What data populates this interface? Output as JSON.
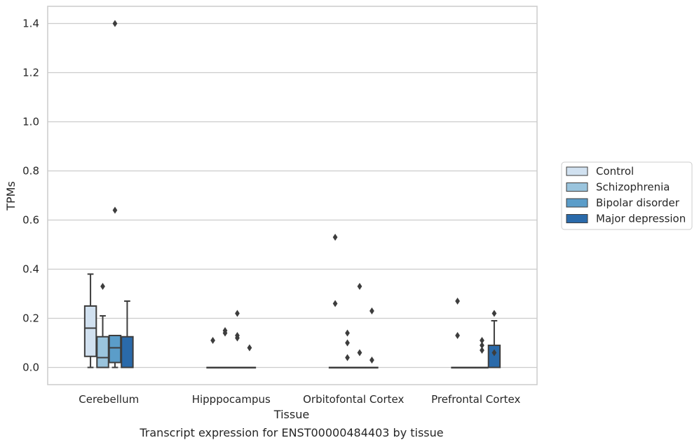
{
  "chart_data": {
    "type": "box",
    "xlabel": "Tissue",
    "ylabel": "TPMs",
    "caption": "Transcript expression for ENST00000484403 by tissue",
    "ylim": [
      -0.07,
      1.47
    ],
    "yticks": [
      "0.0",
      "0.2",
      "0.4",
      "0.6",
      "0.8",
      "1.0",
      "1.2",
      "1.4"
    ],
    "grid": "horizontal",
    "legend_position": "right",
    "categories": [
      "Cerebellum",
      "Hipppocampus",
      "Orbitofontal Cortex",
      "Prefrontal Cortex"
    ],
    "series": [
      {
        "name": "Control",
        "color": "#d1e1f0",
        "boxes": [
          {
            "category": "Cerebellum",
            "whisker_low": 0.0,
            "q1": 0.045,
            "median": 0.16,
            "q3": 0.25,
            "whisker_high": 0.38,
            "outliers": []
          },
          {
            "category": "Hipppocampus",
            "whisker_low": 0.0,
            "q1": 0.0,
            "median": 0.0,
            "q3": 0.0,
            "whisker_high": 0.0,
            "outliers": [
              0.11
            ]
          },
          {
            "category": "Orbitofontal Cortex",
            "whisker_low": 0.0,
            "q1": 0.0,
            "median": 0.0,
            "q3": 0.0,
            "whisker_high": 0.0,
            "outliers": [
              0.53,
              0.26
            ]
          },
          {
            "category": "Prefrontal Cortex",
            "whisker_low": 0.0,
            "q1": 0.0,
            "median": 0.0,
            "q3": 0.0,
            "whisker_high": 0.0,
            "outliers": [
              0.27,
              0.13
            ]
          }
        ]
      },
      {
        "name": "Schizophrenia",
        "color": "#9ac4dd",
        "boxes": [
          {
            "category": "Cerebellum",
            "whisker_low": 0.0,
            "q1": 0.0,
            "median": 0.04,
            "q3": 0.125,
            "whisker_high": 0.21,
            "outliers": [
              0.33
            ]
          },
          {
            "category": "Hipppocampus",
            "whisker_low": 0.0,
            "q1": 0.0,
            "median": 0.0,
            "q3": 0.0,
            "whisker_high": 0.0,
            "outliers": [
              0.15,
              0.14
            ]
          },
          {
            "category": "Orbitofontal Cortex",
            "whisker_low": 0.0,
            "q1": 0.0,
            "median": 0.0,
            "q3": 0.0,
            "whisker_high": 0.0,
            "outliers": [
              0.14,
              0.1,
              0.04
            ]
          },
          {
            "category": "Prefrontal Cortex",
            "whisker_low": 0.0,
            "q1": 0.0,
            "median": 0.0,
            "q3": 0.0,
            "whisker_high": 0.0,
            "outliers": []
          }
        ]
      },
      {
        "name": "Bipolar disorder",
        "color": "#5b9dc9",
        "boxes": [
          {
            "category": "Cerebellum",
            "whisker_low": 0.0,
            "q1": 0.02,
            "median": 0.08,
            "q3": 0.13,
            "whisker_high": 0.13,
            "outliers": [
              1.4,
              0.64
            ]
          },
          {
            "category": "Hipppocampus",
            "whisker_low": 0.0,
            "q1": 0.0,
            "median": 0.0,
            "q3": 0.0,
            "whisker_high": 0.0,
            "outliers": [
              0.22,
              0.13,
              0.12
            ]
          },
          {
            "category": "Orbitofontal Cortex",
            "whisker_low": 0.0,
            "q1": 0.0,
            "median": 0.0,
            "q3": 0.0,
            "whisker_high": 0.0,
            "outliers": [
              0.33,
              0.06
            ]
          },
          {
            "category": "Prefrontal Cortex",
            "whisker_low": 0.0,
            "q1": 0.0,
            "median": 0.0,
            "q3": 0.0,
            "whisker_high": 0.0,
            "outliers": [
              0.11,
              0.09,
              0.07
            ]
          }
        ]
      },
      {
        "name": "Major depression",
        "color": "#2a6aaa",
        "boxes": [
          {
            "category": "Cerebellum",
            "whisker_low": 0.0,
            "q1": 0.0,
            "median": 0.0,
            "q3": 0.125,
            "whisker_high": 0.27,
            "outliers": []
          },
          {
            "category": "Hipppocampus",
            "whisker_low": 0.0,
            "q1": 0.0,
            "median": 0.0,
            "q3": 0.0,
            "whisker_high": 0.0,
            "outliers": [
              0.08
            ]
          },
          {
            "category": "Orbitofontal Cortex",
            "whisker_low": 0.0,
            "q1": 0.0,
            "median": 0.0,
            "q3": 0.0,
            "whisker_high": 0.0,
            "outliers": [
              0.23,
              0.03
            ]
          },
          {
            "category": "Prefrontal Cortex",
            "whisker_low": 0.0,
            "q1": 0.0,
            "median": 0.0,
            "q3": 0.09,
            "whisker_high": 0.19,
            "outliers": [
              0.22,
              0.06
            ]
          }
        ]
      }
    ]
  }
}
